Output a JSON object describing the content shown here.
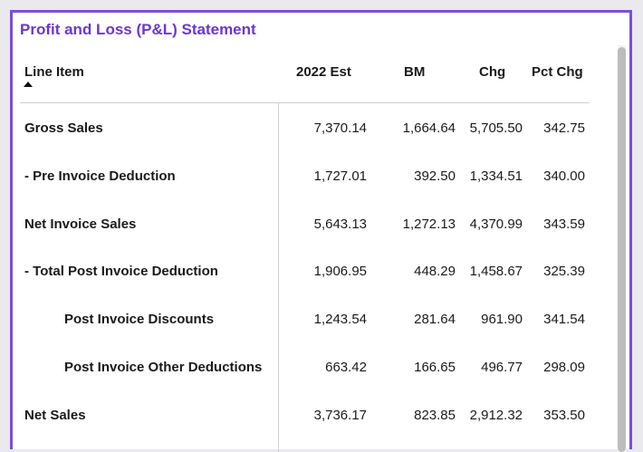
{
  "title": "Profit and Loss (P&L) Statement",
  "columns": {
    "line_item": "Line Item",
    "est_2022": "2022 Est",
    "bm": "BM",
    "chg": "Chg",
    "pct_chg": "Pct Chg"
  },
  "rows": [
    {
      "label": "Gross Sales",
      "est": "7,370.14",
      "bm": "1,664.64",
      "chg": "5,705.50",
      "pct": "342.75",
      "indent": false
    },
    {
      "label": "- Pre Invoice Deduction",
      "est": "1,727.01",
      "bm": "392.50",
      "chg": "1,334.51",
      "pct": "340.00",
      "indent": false
    },
    {
      "label": "Net Invoice Sales",
      "est": "5,643.13",
      "bm": "1,272.13",
      "chg": "4,370.99",
      "pct": "343.59",
      "indent": false
    },
    {
      "label": "- Total Post Invoice Deduction",
      "est": "1,906.95",
      "bm": "448.29",
      "chg": "1,458.67",
      "pct": "325.39",
      "indent": false
    },
    {
      "label": "Post Invoice Discounts",
      "est": "1,243.54",
      "bm": "281.64",
      "chg": "961.90",
      "pct": "341.54",
      "indent": true
    },
    {
      "label": "Post Invoice Other Deductions",
      "est": "663.42",
      "bm": "166.65",
      "chg": "496.77",
      "pct": "298.09",
      "indent": true
    },
    {
      "label": "Net Sales",
      "est": "3,736.17",
      "bm": "823.85",
      "chg": "2,912.32",
      "pct": "353.50",
      "indent": false
    }
  ],
  "colors": {
    "accent": "#7b4fd8",
    "title": "#6a35d6"
  }
}
